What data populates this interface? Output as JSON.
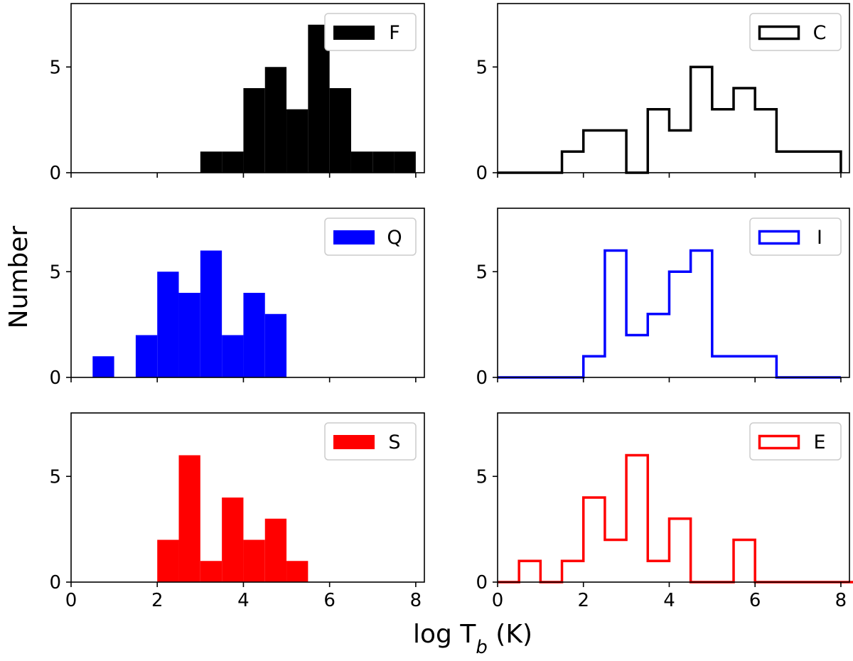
{
  "figure": {
    "ylabel": "Number",
    "xlabel_main": "log T",
    "xlabel_sub": "b",
    "xlabel_unit": " (K)"
  },
  "chart_data": [
    {
      "type": "bar",
      "name": "panel-F",
      "label": "F",
      "style": "filled",
      "color": "#000000",
      "bin_width": 0.5,
      "bins": [
        {
          "x": 3.0,
          "count": 1
        },
        {
          "x": 3.5,
          "count": 1
        },
        {
          "x": 4.0,
          "count": 4
        },
        {
          "x": 4.5,
          "count": 5
        },
        {
          "x": 5.0,
          "count": 3
        },
        {
          "x": 5.5,
          "count": 7
        },
        {
          "x": 6.0,
          "count": 4
        },
        {
          "x": 6.5,
          "count": 1
        },
        {
          "x": 7.0,
          "count": 1
        },
        {
          "x": 7.5,
          "count": 1
        }
      ],
      "xlim": [
        0,
        8.2
      ],
      "ylim": [
        0,
        8
      ],
      "xticks": [],
      "yticks": [
        0,
        5
      ]
    },
    {
      "type": "bar",
      "name": "panel-C",
      "label": "C",
      "style": "step",
      "color": "#000000",
      "bin_width": 0.5,
      "bins": [
        {
          "x": 0.0,
          "count": 0
        },
        {
          "x": 0.5,
          "count": 0
        },
        {
          "x": 1.0,
          "count": 0
        },
        {
          "x": 1.5,
          "count": 1
        },
        {
          "x": 2.0,
          "count": 2
        },
        {
          "x": 2.5,
          "count": 2
        },
        {
          "x": 3.0,
          "count": 0
        },
        {
          "x": 3.5,
          "count": 3
        },
        {
          "x": 4.0,
          "count": 2
        },
        {
          "x": 4.5,
          "count": 5
        },
        {
          "x": 5.0,
          "count": 3
        },
        {
          "x": 5.5,
          "count": 4
        },
        {
          "x": 6.0,
          "count": 3
        },
        {
          "x": 6.5,
          "count": 1
        },
        {
          "x": 7.0,
          "count": 1
        },
        {
          "x": 7.5,
          "count": 1
        }
      ],
      "xlim": [
        0,
        8.2
      ],
      "ylim": [
        0,
        8
      ],
      "xticks": [],
      "yticks": [
        0,
        5
      ]
    },
    {
      "type": "bar",
      "name": "panel-Q",
      "label": "Q",
      "style": "filled",
      "color": "#0000ff",
      "bin_width": 0.5,
      "bins": [
        {
          "x": 0.5,
          "count": 1
        },
        {
          "x": 1.5,
          "count": 2
        },
        {
          "x": 2.0,
          "count": 5
        },
        {
          "x": 2.5,
          "count": 4
        },
        {
          "x": 3.0,
          "count": 6
        },
        {
          "x": 3.5,
          "count": 2
        },
        {
          "x": 4.0,
          "count": 4
        },
        {
          "x": 4.5,
          "count": 3
        }
      ],
      "xlim": [
        0,
        8.2
      ],
      "ylim": [
        0,
        8
      ],
      "xticks": [],
      "yticks": [
        0,
        5
      ]
    },
    {
      "type": "bar",
      "name": "panel-I",
      "label": "I",
      "style": "step",
      "color": "#0000ff",
      "bin_width": 0.5,
      "bins": [
        {
          "x": 0.0,
          "count": 0
        },
        {
          "x": 0.5,
          "count": 0
        },
        {
          "x": 1.0,
          "count": 0
        },
        {
          "x": 1.5,
          "count": 0
        },
        {
          "x": 2.0,
          "count": 1
        },
        {
          "x": 2.5,
          "count": 6
        },
        {
          "x": 3.0,
          "count": 2
        },
        {
          "x": 3.5,
          "count": 3
        },
        {
          "x": 4.0,
          "count": 5
        },
        {
          "x": 4.5,
          "count": 6
        },
        {
          "x": 5.0,
          "count": 1
        },
        {
          "x": 5.5,
          "count": 1
        },
        {
          "x": 6.0,
          "count": 1
        },
        {
          "x": 6.5,
          "count": 0
        },
        {
          "x": 7.0,
          "count": 0
        },
        {
          "x": 7.5,
          "count": 0
        }
      ],
      "xlim": [
        0,
        8.2
      ],
      "ylim": [
        0,
        8
      ],
      "xticks": [],
      "yticks": [
        0,
        5
      ]
    },
    {
      "type": "bar",
      "name": "panel-S",
      "label": "S",
      "style": "filled",
      "color": "#ff0000",
      "bin_width": 0.5,
      "bins": [
        {
          "x": 2.0,
          "count": 2
        },
        {
          "x": 2.5,
          "count": 6
        },
        {
          "x": 3.0,
          "count": 1
        },
        {
          "x": 3.5,
          "count": 4
        },
        {
          "x": 4.0,
          "count": 2
        },
        {
          "x": 4.5,
          "count": 3
        },
        {
          "x": 5.0,
          "count": 1
        }
      ],
      "xlim": [
        0,
        8.2
      ],
      "ylim": [
        0,
        8
      ],
      "xticks": [
        0,
        2,
        4,
        6,
        8
      ],
      "yticks": [
        0,
        5
      ]
    },
    {
      "type": "bar",
      "name": "panel-E",
      "label": "E",
      "style": "step",
      "color": "#ff0000",
      "bin_width": 0.5,
      "bins": [
        {
          "x": 0.0,
          "count": 0
        },
        {
          "x": 0.5,
          "count": 1
        },
        {
          "x": 1.0,
          "count": 0
        },
        {
          "x": 1.5,
          "count": 1
        },
        {
          "x": 2.0,
          "count": 4
        },
        {
          "x": 2.5,
          "count": 2
        },
        {
          "x": 3.0,
          "count": 6
        },
        {
          "x": 3.5,
          "count": 1
        },
        {
          "x": 4.0,
          "count": 3
        },
        {
          "x": 4.5,
          "count": 0
        },
        {
          "x": 5.0,
          "count": 0
        },
        {
          "x": 5.5,
          "count": 2
        },
        {
          "x": 6.0,
          "count": 0
        },
        {
          "x": 6.5,
          "count": 0
        },
        {
          "x": 7.0,
          "count": 0
        },
        {
          "x": 7.5,
          "count": 0
        },
        {
          "x": 8.0,
          "count": 0
        }
      ],
      "xlim": [
        0,
        8.2
      ],
      "ylim": [
        0,
        8
      ],
      "xticks": [
        0,
        2,
        4,
        6,
        8
      ],
      "yticks": [
        0,
        5
      ]
    }
  ]
}
